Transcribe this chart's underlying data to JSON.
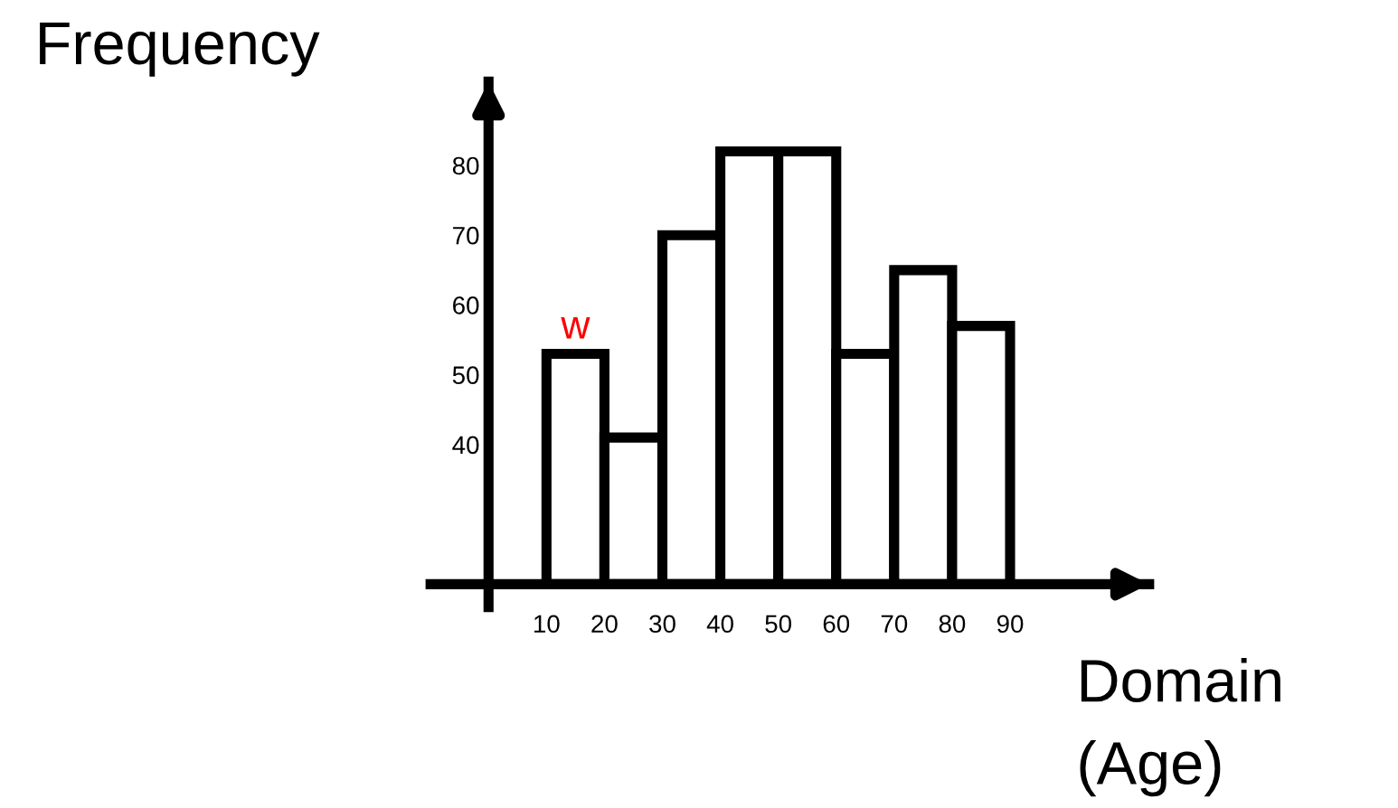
{
  "chart_data": {
    "type": "histogram",
    "xlabel": "Domain\n(Age)",
    "ylabel": "Frequency",
    "bins": [
      10,
      20,
      30,
      40,
      50,
      60,
      70,
      80,
      90
    ],
    "values": [
      53,
      41,
      70,
      82,
      82,
      53,
      65,
      57
    ],
    "color": "#ffffff",
    "xlim": [
      -10,
      114
    ],
    "ylim": [
      20,
      92
    ],
    "xticks": [
      10,
      20,
      30,
      40,
      50,
      60,
      70,
      80,
      90
    ],
    "yticks": [
      40,
      50,
      60,
      70,
      80
    ],
    "annotations": [
      {
        "text": "w",
        "x": 15,
        "y": 53
      }
    ],
    "grid": false
  }
}
